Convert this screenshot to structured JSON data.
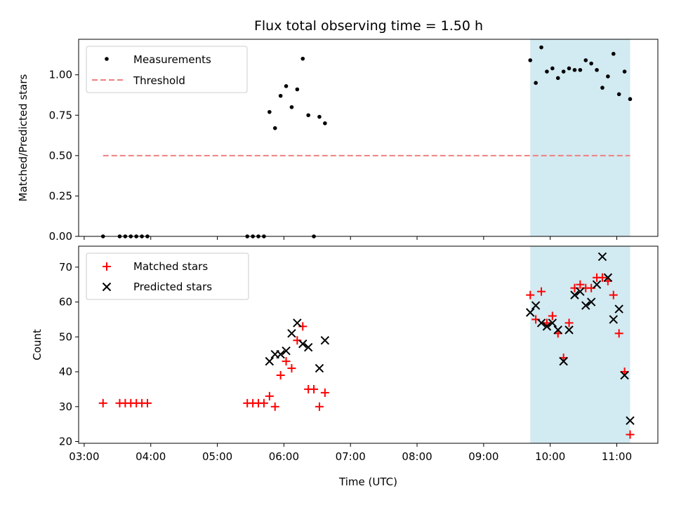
{
  "title": "Flux total observing time = 1.50 h",
  "colors": {
    "measurement": "#000000",
    "threshold": "#f08080",
    "matched": "#ff0000",
    "predicted": "#000000",
    "span": "#add8e6"
  },
  "chart_data": [
    {
      "type": "scatter",
      "panel": "top",
      "ylabel": "Matched/Predicted stars",
      "ylim": [
        0,
        1.22
      ],
      "yticks": [
        0.0,
        0.25,
        0.5,
        0.75,
        1.0
      ],
      "ytick_labels": [
        "0.00",
        "0.25",
        "0.50",
        "0.75",
        "1.00"
      ],
      "xlim": [
        "02:55",
        "11:37"
      ],
      "legend": {
        "placement": "top-left",
        "entries": [
          "Measurements",
          "Threshold"
        ]
      },
      "observing_span": [
        "09:42",
        "11:12"
      ],
      "threshold": {
        "name": "Threshold",
        "y": 0.5,
        "x_range": [
          "03:17",
          "11:12"
        ]
      },
      "series": [
        {
          "name": "Measurements",
          "points": [
            [
              "03:17",
              0.0
            ],
            [
              "03:32",
              0.0
            ],
            [
              "03:37",
              0.0
            ],
            [
              "03:42",
              0.0
            ],
            [
              "03:47",
              0.0
            ],
            [
              "03:52",
              0.0
            ],
            [
              "03:57",
              0.0
            ],
            [
              "05:27",
              0.0
            ],
            [
              "05:32",
              0.0
            ],
            [
              "05:37",
              0.0
            ],
            [
              "05:42",
              0.0
            ],
            [
              "05:47",
              0.77
            ],
            [
              "05:52",
              0.67
            ],
            [
              "05:57",
              0.87
            ],
            [
              "06:02",
              0.93
            ],
            [
              "06:07",
              0.8
            ],
            [
              "06:12",
              0.91
            ],
            [
              "06:17",
              1.1
            ],
            [
              "06:22",
              0.75
            ],
            [
              "06:27",
              0.0
            ],
            [
              "06:32",
              0.74
            ],
            [
              "06:37",
              0.7
            ],
            [
              "09:42",
              1.09
            ],
            [
              "09:47",
              0.95
            ],
            [
              "09:52",
              1.17
            ],
            [
              "09:57",
              1.02
            ],
            [
              "10:02",
              1.04
            ],
            [
              "10:07",
              0.98
            ],
            [
              "10:12",
              1.02
            ],
            [
              "10:17",
              1.04
            ],
            [
              "10:22",
              1.03
            ],
            [
              "10:27",
              1.03
            ],
            [
              "10:32",
              1.09
            ],
            [
              "10:37",
              1.07
            ],
            [
              "10:42",
              1.03
            ],
            [
              "10:47",
              0.92
            ],
            [
              "10:52",
              0.99
            ],
            [
              "10:57",
              1.13
            ],
            [
              "11:02",
              0.88
            ],
            [
              "11:07",
              1.02
            ],
            [
              "11:12",
              0.85
            ]
          ]
        }
      ]
    },
    {
      "type": "scatter",
      "panel": "bottom",
      "xlabel": "Time (UTC)",
      "ylabel": "Count",
      "ylim": [
        19.5,
        76
      ],
      "yticks": [
        20,
        30,
        40,
        50,
        60,
        70
      ],
      "xlim": [
        "02:55",
        "11:37"
      ],
      "xticks": [
        "03:00",
        "04:00",
        "05:00",
        "06:00",
        "07:00",
        "08:00",
        "09:00",
        "10:00",
        "11:00"
      ],
      "legend": {
        "placement": "top-left",
        "entries": [
          "Matched stars",
          "Predicted stars"
        ]
      },
      "observing_span": [
        "09:42",
        "11:12"
      ],
      "series": [
        {
          "name": "Matched stars",
          "points": [
            [
              "03:17",
              31
            ],
            [
              "03:32",
              31
            ],
            [
              "03:37",
              31
            ],
            [
              "03:42",
              31
            ],
            [
              "03:47",
              31
            ],
            [
              "03:52",
              31
            ],
            [
              "03:57",
              31
            ],
            [
              "05:27",
              31
            ],
            [
              "05:32",
              31
            ],
            [
              "05:37",
              31
            ],
            [
              "05:42",
              31
            ],
            [
              "05:47",
              33
            ],
            [
              "05:52",
              30
            ],
            [
              "05:57",
              39
            ],
            [
              "06:02",
              43
            ],
            [
              "06:07",
              41
            ],
            [
              "06:12",
              49
            ],
            [
              "06:17",
              53
            ],
            [
              "06:22",
              35
            ],
            [
              "06:27",
              35
            ],
            [
              "06:32",
              30
            ],
            [
              "06:37",
              34
            ],
            [
              "09:42",
              62
            ],
            [
              "09:47",
              55
            ],
            [
              "09:52",
              63
            ],
            [
              "09:57",
              54
            ],
            [
              "10:02",
              56
            ],
            [
              "10:07",
              51
            ],
            [
              "10:12",
              44
            ],
            [
              "10:17",
              54
            ],
            [
              "10:22",
              64
            ],
            [
              "10:27",
              65
            ],
            [
              "10:32",
              64
            ],
            [
              "10:37",
              64
            ],
            [
              "10:42",
              67
            ],
            [
              "10:47",
              67
            ],
            [
              "10:52",
              66
            ],
            [
              "10:57",
              62
            ],
            [
              "11:02",
              51
            ],
            [
              "11:07",
              40
            ],
            [
              "11:12",
              22
            ]
          ]
        },
        {
          "name": "Predicted stars",
          "points": [
            [
              "05:47",
              43
            ],
            [
              "05:52",
              45
            ],
            [
              "05:57",
              45
            ],
            [
              "06:02",
              46
            ],
            [
              "06:07",
              51
            ],
            [
              "06:12",
              54
            ],
            [
              "06:17",
              48
            ],
            [
              "06:22",
              47
            ],
            [
              "06:32",
              41
            ],
            [
              "06:37",
              49
            ],
            [
              "09:42",
              57
            ],
            [
              "09:47",
              59
            ],
            [
              "09:52",
              54
            ],
            [
              "09:57",
              53
            ],
            [
              "10:02",
              54
            ],
            [
              "10:07",
              52
            ],
            [
              "10:12",
              43
            ],
            [
              "10:17",
              52
            ],
            [
              "10:22",
              62
            ],
            [
              "10:27",
              63
            ],
            [
              "10:32",
              59
            ],
            [
              "10:37",
              60
            ],
            [
              "10:42",
              65
            ],
            [
              "10:47",
              73
            ],
            [
              "10:52",
              67
            ],
            [
              "10:57",
              55
            ],
            [
              "11:02",
              58
            ],
            [
              "11:07",
              39
            ],
            [
              "11:12",
              26
            ]
          ]
        }
      ]
    }
  ]
}
